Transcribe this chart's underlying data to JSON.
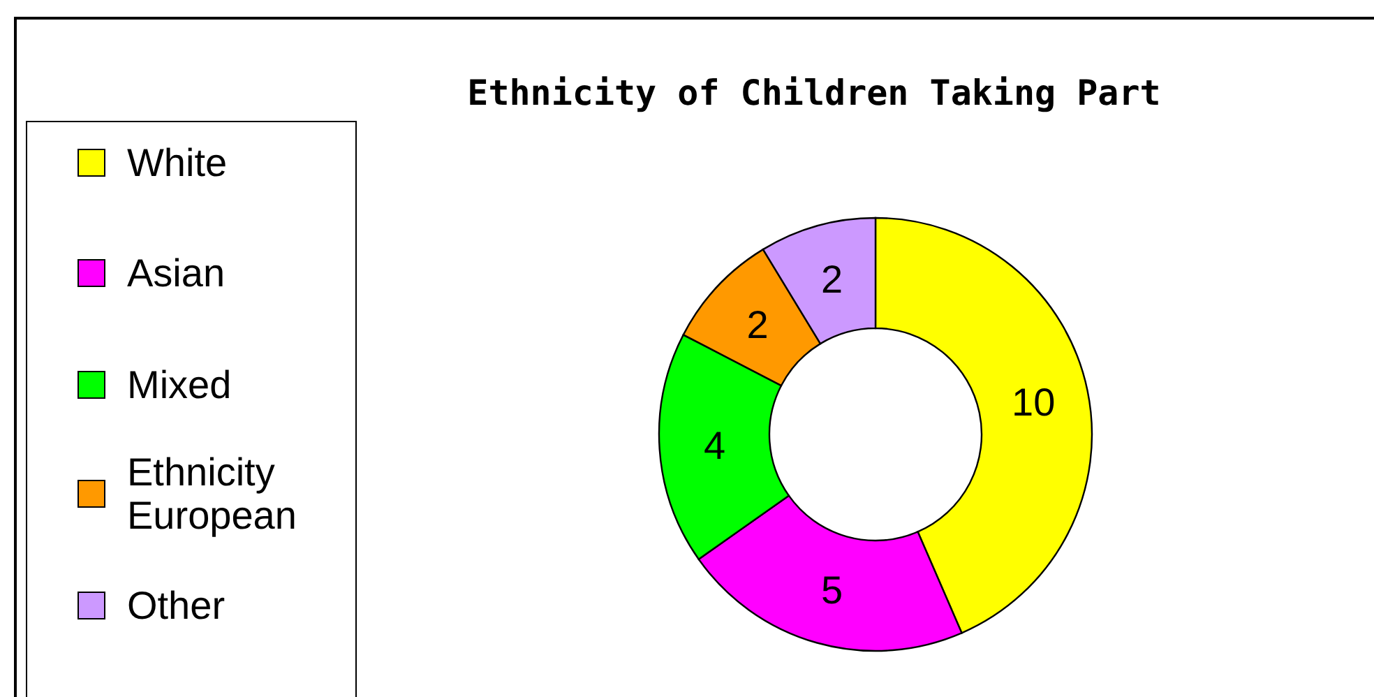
{
  "chart_data": {
    "type": "donut",
    "title": "Ethnicity of Children Taking Part",
    "categories": [
      "White",
      "Asian",
      "Mixed",
      "Ethnicity European",
      "Other"
    ],
    "values": [
      10,
      5,
      4,
      2,
      2
    ],
    "colors": [
      "#ffff00",
      "#ff00ff",
      "#00ff00",
      "#ff9900",
      "#cc99ff"
    ],
    "data_labels": true,
    "legend": "left"
  }
}
